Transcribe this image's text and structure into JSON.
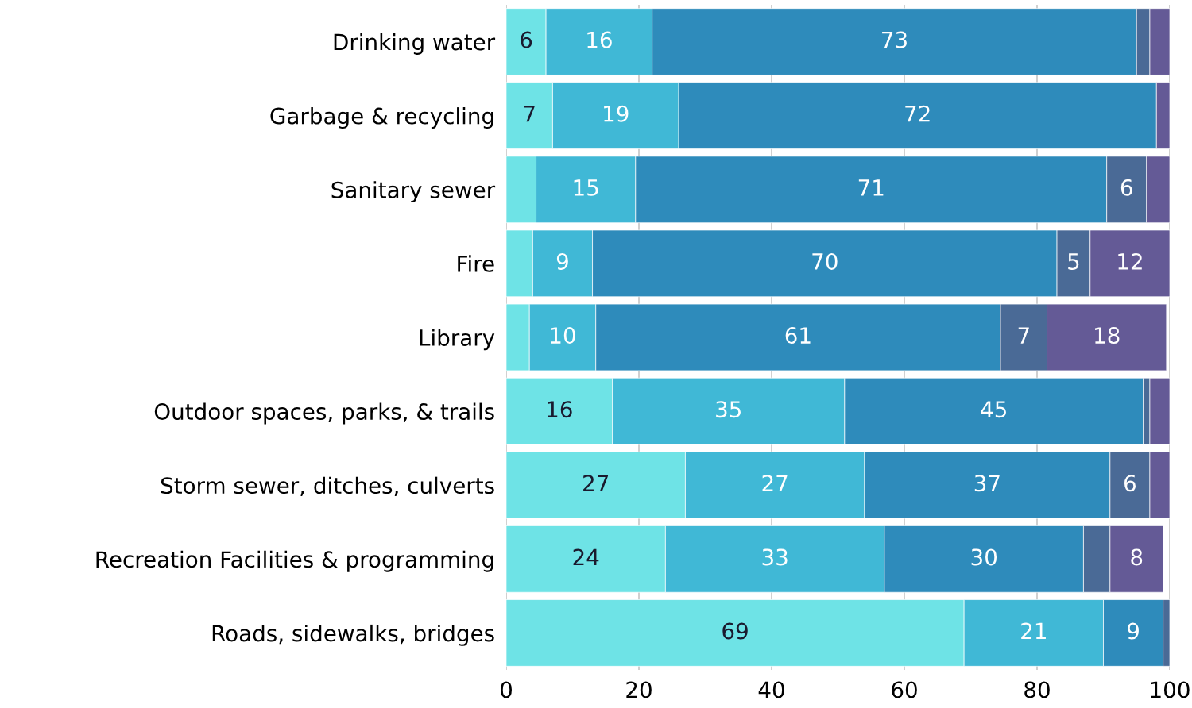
{
  "chart_data": {
    "type": "bar",
    "orientation": "horizontal",
    "stacked": true,
    "grid": "x",
    "categories": [
      "Drinking water",
      "Garbage & recycling",
      "Sanitary sewer",
      "Fire",
      "Library",
      "Outdoor spaces, parks, & trails",
      "Storm sewer, ditches, culverts",
      "Recreation Facilities & programming",
      "Roads, sidewalks, bridges"
    ],
    "xlim": [
      0,
      100
    ],
    "xticks": [
      0,
      20,
      40,
      60,
      80,
      100
    ],
    "series": [
      {
        "color": "#6ee3e6",
        "values": [
          6,
          7,
          4.5,
          4,
          3.5,
          16,
          27,
          24,
          69
        ],
        "value_labels": [
          "6",
          "7",
          null,
          null,
          null,
          "16",
          "27",
          "24",
          "69"
        ]
      },
      {
        "color": "#40b8d6",
        "values": [
          16,
          19,
          15,
          9,
          10,
          35,
          27,
          33,
          21
        ],
        "value_labels": [
          "16",
          "19",
          "15",
          "9",
          "10",
          "35",
          "27",
          "33",
          "21"
        ]
      },
      {
        "color": "#2e8bbb",
        "values": [
          73,
          72,
          71,
          70,
          61,
          45,
          37,
          30,
          9
        ],
        "value_labels": [
          "73",
          "72",
          "71",
          "70",
          "61",
          "45",
          "37",
          "30",
          "9"
        ]
      },
      {
        "color": "#4a6a96",
        "values": [
          2,
          null,
          6,
          5,
          7,
          1,
          6,
          4,
          1
        ],
        "value_labels": [
          null,
          null,
          "6",
          "5",
          "7",
          null,
          "6",
          null,
          null
        ]
      },
      {
        "color": "#645a96",
        "values": [
          3,
          2,
          3.5,
          12,
          18,
          3,
          3,
          8,
          null
        ],
        "value_labels": [
          null,
          null,
          null,
          "12",
          "18",
          null,
          null,
          "8",
          null
        ]
      }
    ]
  }
}
